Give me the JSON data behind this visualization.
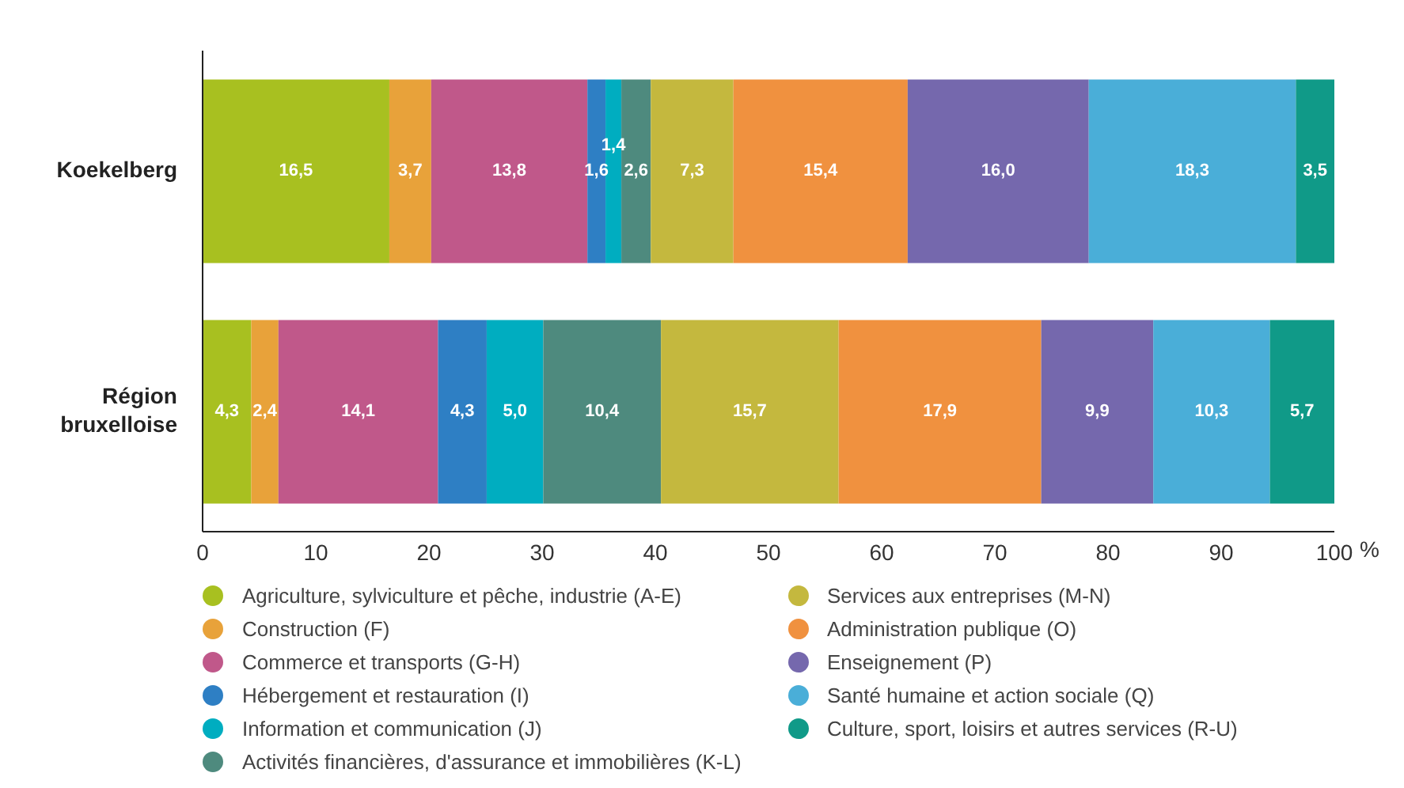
{
  "chart_data": {
    "type": "bar",
    "orientation": "horizontal",
    "stacked": true,
    "xlabel": "%",
    "categories": [
      "Koekelberg",
      "Région bruxelloise"
    ],
    "series": [
      {
        "name": "Agriculture, sylviculture et pêche, industrie (A-E)",
        "color": "#a8c020",
        "values": [
          16.5,
          4.3
        ],
        "value_labels": [
          "16,5",
          "4,3"
        ]
      },
      {
        "name": "Construction (F)",
        "color": "#e8a23a",
        "values": [
          3.7,
          2.4
        ],
        "value_labels": [
          "3,7",
          "2,4"
        ]
      },
      {
        "name": "Commerce et transports (G-H)",
        "color": "#c0588a",
        "values": [
          13.8,
          14.1
        ],
        "value_labels": [
          "13,8",
          "14,1"
        ]
      },
      {
        "name": "Hébergement et restauration (I)",
        "color": "#2e7fc4",
        "values": [
          1.6,
          4.3
        ],
        "value_labels": [
          "1,6",
          "4,3"
        ]
      },
      {
        "name": "Information et communication (J)",
        "color": "#00adc0",
        "values": [
          1.4,
          5.0
        ],
        "value_labels": [
          "1,4",
          "5,0"
        ]
      },
      {
        "name": "Activités financières, d'assurance et immobilières (K-L)",
        "color": "#4e8a7e",
        "values": [
          2.6,
          10.4
        ],
        "value_labels": [
          "2,6",
          "10,4"
        ]
      },
      {
        "name": "Services aux entreprises (M-N)",
        "color": "#c4b83e",
        "values": [
          7.3,
          15.7
        ],
        "value_labels": [
          "7,3",
          "15,7"
        ]
      },
      {
        "name": "Administration publique (O)",
        "color": "#f0913f",
        "values": [
          15.4,
          17.9
        ],
        "value_labels": [
          "15,4",
          "17,9"
        ]
      },
      {
        "name": "Enseignement (P)",
        "color": "#7568ad",
        "values": [
          16.0,
          9.9
        ],
        "value_labels": [
          "16,0",
          "9,9"
        ]
      },
      {
        "name": "Santé humaine et action sociale (Q)",
        "color": "#4aaed8",
        "values": [
          18.3,
          10.3
        ],
        "value_labels": [
          "18,3",
          "10,3"
        ]
      },
      {
        "name": "Culture, sport, loisirs et autres services (R-U)",
        "color": "#109a88",
        "values": [
          3.5,
          5.7
        ],
        "value_labels": [
          "3,5",
          "5,7"
        ]
      }
    ],
    "xlim": [
      0,
      100
    ],
    "xticks": [
      0,
      10,
      20,
      30,
      40,
      50,
      60,
      70,
      80,
      90,
      100
    ],
    "legend": "bottom"
  }
}
